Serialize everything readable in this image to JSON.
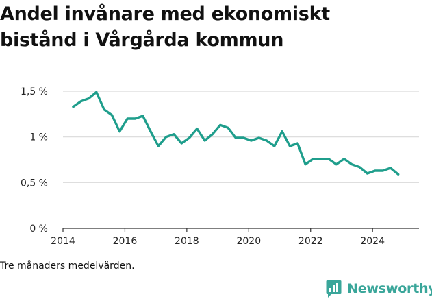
{
  "title": "Andel invånare med ekonomiskt bistånd i Vårgårda kommun",
  "footnote": "Tre månaders medelvärden.",
  "brand": {
    "name": "Newsworthy",
    "icon": "newsworthy-logo-icon",
    "color": "#3aa69a"
  },
  "chart_data": {
    "type": "line",
    "title": "Andel invånare med ekonomiskt bistånd i Vårgårda kommun",
    "xlabel": "",
    "ylabel": "",
    "xlim": [
      2014.0,
      2025.5
    ],
    "ylim": [
      0,
      1.5
    ],
    "x_ticks": [
      2014,
      2016,
      2018,
      2020,
      2022,
      2024
    ],
    "x_tick_labels": [
      "2014",
      "2016",
      "2018",
      "2020",
      "2022",
      "2024"
    ],
    "y_ticks": [
      0,
      0.5,
      1,
      1.5
    ],
    "y_tick_labels": [
      "0 %",
      "0,5 %",
      "1 %",
      "1,5 %"
    ],
    "grid": "horizontal",
    "line_color": "#1f9e8c",
    "series": [
      {
        "x": [
          2014.33,
          2014.58,
          2014.83,
          2015.08,
          2015.33,
          2015.58,
          2015.83,
          2016.08,
          2016.33,
          2016.58,
          2016.83,
          2017.08,
          2017.33,
          2017.58,
          2017.83,
          2018.08,
          2018.33,
          2018.58,
          2018.83,
          2019.08,
          2019.33,
          2019.58,
          2019.83,
          2020.08,
          2020.33,
          2020.58,
          2020.83,
          2021.08,
          2021.33,
          2021.58,
          2021.83,
          2022.08,
          2022.33,
          2022.58,
          2022.83,
          2023.08,
          2023.33,
          2023.58,
          2023.83,
          2024.08,
          2024.33,
          2024.58,
          2024.83
        ],
        "y": [
          1.33,
          1.39,
          1.42,
          1.49,
          1.3,
          1.24,
          1.06,
          1.2,
          1.2,
          1.23,
          1.06,
          0.9,
          1.0,
          1.03,
          0.93,
          0.99,
          1.09,
          0.96,
          1.03,
          1.13,
          1.1,
          0.99,
          0.99,
          0.96,
          0.99,
          0.96,
          0.9,
          1.06,
          0.9,
          0.93,
          0.7,
          0.76,
          0.76,
          0.76,
          0.7,
          0.76,
          0.7,
          0.67,
          0.6,
          0.63,
          0.63,
          0.66,
          0.59
        ]
      }
    ]
  }
}
